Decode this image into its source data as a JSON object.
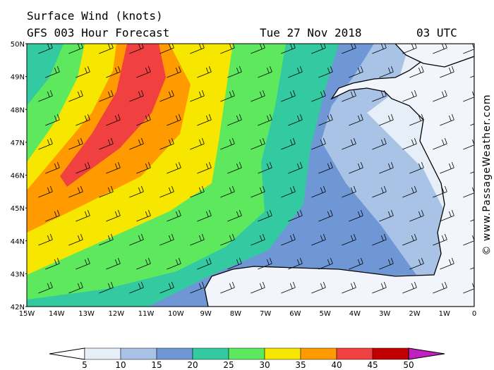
{
  "header": {
    "title": "Surface Wind (knots)",
    "subtitle": "GFS 003 Hour Forecast",
    "date": "Tue 27 Nov 2018",
    "time": "03 UTC"
  },
  "axes": {
    "lat_labels": [
      "50N",
      "49N",
      "48N",
      "47N",
      "46N",
      "45N",
      "44N",
      "43N",
      "42N"
    ],
    "lon_labels": [
      "15W",
      "14W",
      "13W",
      "12W",
      "11W",
      "10W",
      "9W",
      "8W",
      "7W",
      "6W",
      "5W",
      "4W",
      "3W",
      "2W",
      "1W",
      "0"
    ]
  },
  "colorbar": {
    "labels": [
      5,
      10,
      15,
      20,
      25,
      30,
      35,
      40,
      45,
      50
    ]
  },
  "credit": "© www.PassageWeather.com"
}
